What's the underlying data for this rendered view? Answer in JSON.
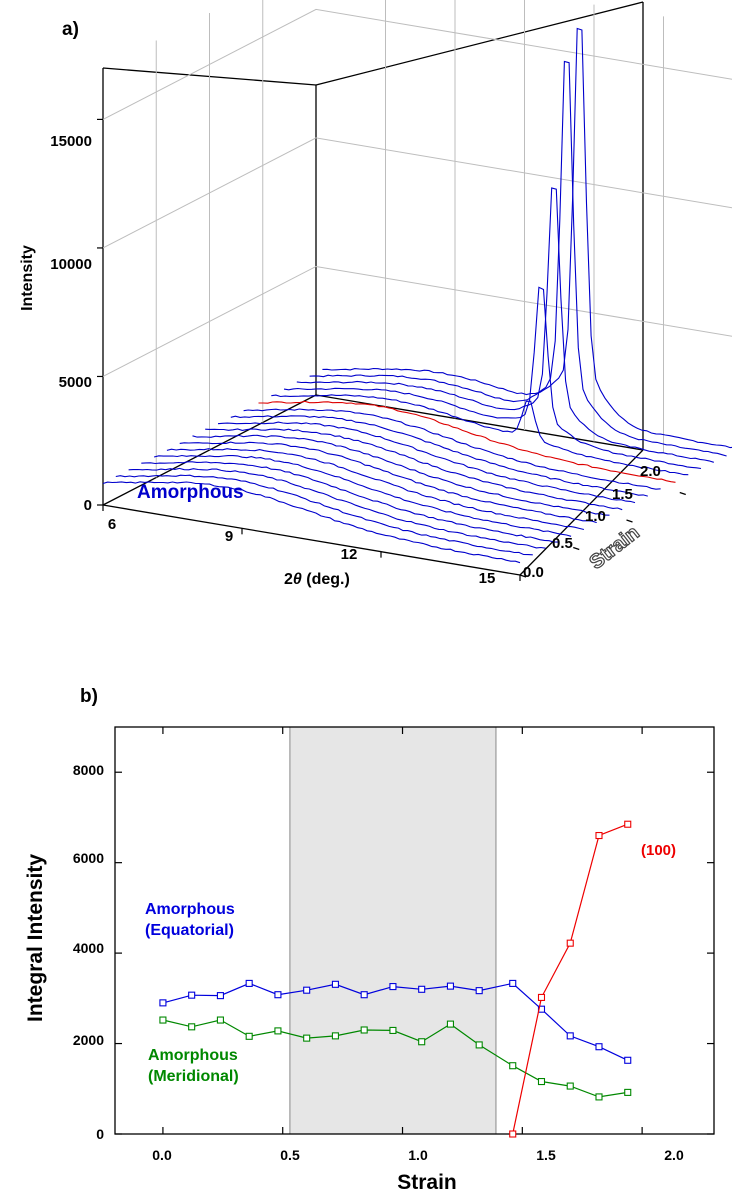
{
  "chart_data": [
    {
      "type": "line",
      "panel_label": "a)",
      "title": "",
      "xlabel_prefix": "2",
      "xlabel_symbol": "θ",
      "xlabel_suffix": " (deg.)",
      "ylabel": "Intensity",
      "zlabel": "Strain",
      "annotation": "Amorphous",
      "x_ticks": [
        "6",
        "9",
        "12",
        "15"
      ],
      "y_ticks": [
        "0",
        "5000",
        "10000",
        "15000"
      ],
      "z_ticks": [
        "0.0",
        "0.5",
        "1.0",
        "1.5",
        "2.0"
      ],
      "xlim": [
        6,
        15
      ],
      "ylim": [
        0,
        17000
      ],
      "zlim": [
        0,
        2
      ],
      "series": [
        {
          "strain": 0.0,
          "peak": 0,
          "color": "#0000cc"
        },
        {
          "strain": 0.12,
          "peak": 0,
          "color": "#0000cc"
        },
        {
          "strain": 0.24,
          "peak": 0,
          "color": "#0000cc"
        },
        {
          "strain": 0.36,
          "peak": 0,
          "color": "#0000cc"
        },
        {
          "strain": 0.48,
          "peak": 0,
          "color": "#0000cc"
        },
        {
          "strain": 0.6,
          "peak": 0,
          "color": "#0000cc"
        },
        {
          "strain": 0.72,
          "peak": 0,
          "color": "#0000cc"
        },
        {
          "strain": 0.84,
          "peak": 0,
          "color": "#0000cc"
        },
        {
          "strain": 0.96,
          "peak": 0,
          "color": "#0000cc"
        },
        {
          "strain": 1.08,
          "peak": 0,
          "color": "#0000cc"
        },
        {
          "strain": 1.2,
          "peak": 0,
          "color": "#0000cc"
        },
        {
          "strain": 1.32,
          "peak": 0,
          "color": "#0000cc"
        },
        {
          "strain": 1.46,
          "peak": 0,
          "color": "#dd0000"
        },
        {
          "strain": 1.58,
          "peak": 1500,
          "color": "#0000cc"
        },
        {
          "strain": 1.7,
          "peak": 5500,
          "color": "#0000cc"
        },
        {
          "strain": 1.82,
          "peak": 9000,
          "color": "#0000cc"
        },
        {
          "strain": 1.94,
          "peak": 13500,
          "color": "#0000cc"
        },
        {
          "strain": 2.06,
          "peak": 14500,
          "color": "#0000cc"
        }
      ]
    },
    {
      "type": "line",
      "panel_label": "b)",
      "title": "",
      "xlabel": "Strain",
      "ylabel": "Integral Intensity",
      "xlim": [
        -0.2,
        2.3
      ],
      "ylim": [
        0,
        9000
      ],
      "x_ticks": [
        "0.0",
        "0.5",
        "1.0",
        "1.5",
        "2.0"
      ],
      "y_ticks": [
        "0",
        "2000",
        "4000",
        "6000",
        "8000"
      ],
      "shaded_region": [
        0.53,
        1.39
      ],
      "series": [
        {
          "name": "Amorphous (Equatorial)",
          "label_lines": [
            "Amorphous",
            "(Equatorial)"
          ],
          "color": "#0000dd",
          "x": [
            0.0,
            0.12,
            0.24,
            0.36,
            0.48,
            0.6,
            0.72,
            0.84,
            0.96,
            1.08,
            1.2,
            1.32,
            1.46,
            1.58,
            1.7,
            1.82,
            1.94
          ],
          "y": [
            2900,
            3070,
            3060,
            3330,
            3080,
            3180,
            3310,
            3080,
            3260,
            3200,
            3270,
            3170,
            3330,
            2760,
            2170,
            1930,
            1630
          ]
        },
        {
          "name": "Amorphous (Meridional)",
          "label_lines": [
            "Amorphous",
            "(Meridional)"
          ],
          "color": "#008800",
          "x": [
            0.0,
            0.12,
            0.24,
            0.36,
            0.48,
            0.6,
            0.72,
            0.84,
            0.96,
            1.08,
            1.2,
            1.32,
            1.46,
            1.58,
            1.7,
            1.82,
            1.94
          ],
          "y": [
            2520,
            2370,
            2520,
            2160,
            2280,
            2120,
            2170,
            2300,
            2290,
            2040,
            2430,
            1970,
            1510,
            1160,
            1060,
            820,
            920
          ]
        },
        {
          "name": "(100)",
          "label_lines": [
            "(100)"
          ],
          "color": "#ee0000",
          "x": [
            1.46,
            1.58,
            1.7,
            1.82,
            1.94
          ],
          "y": [
            0,
            3020,
            4220,
            6600,
            6850
          ]
        }
      ]
    }
  ]
}
